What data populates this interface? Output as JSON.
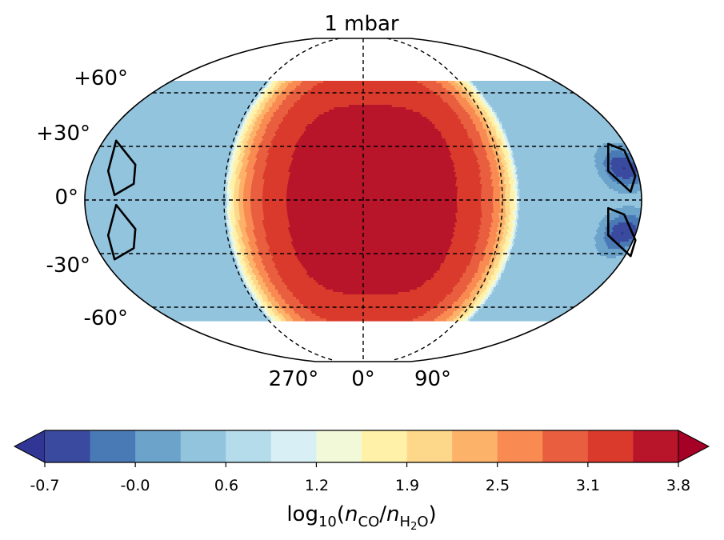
{
  "chart_data": {
    "type": "heatmap",
    "projection": "robinson",
    "title": "1 mbar",
    "lat_ticks": [
      "+60°",
      "+30°",
      "0°",
      "-30°",
      "-60°"
    ],
    "lat_values": [
      60,
      30,
      0,
      -30,
      -60
    ],
    "lon_ticks": [
      "270°",
      "0°",
      "90°"
    ],
    "lon_values": [
      270,
      0,
      90
    ],
    "data_lat_range": [
      -67,
      67
    ],
    "contour_levels": [
      -0.7,
      -0.35,
      -0.0,
      0.3,
      0.6,
      0.9,
      1.2,
      1.55,
      1.9,
      2.2,
      2.5,
      2.8,
      3.1,
      3.45,
      3.8
    ],
    "colorbar": {
      "ticks": [
        "-0.7",
        "-0.0",
        "0.6",
        "1.2",
        "1.9",
        "2.5",
        "3.1",
        "3.8"
      ],
      "label_base": "log",
      "label_sub": "10",
      "label_open": "(",
      "label_n": "n",
      "label_co": "CO",
      "label_slash": "/",
      "label_h": "H",
      "label_2": "2",
      "label_o": "O",
      "label_close": ")",
      "extend": "both",
      "colors": [
        "#313695",
        "#3a4b9f",
        "#4a7ab6",
        "#6ba3ca",
        "#93c4de",
        "#b5dcea",
        "#d8eff5",
        "#f1f9d8",
        "#fff1a8",
        "#fed88a",
        "#fdb26a",
        "#f88a52",
        "#e85e3e",
        "#d93a2c",
        "#b8152a",
        "#a50026"
      ]
    },
    "dayside_center_lon": 0,
    "dayside_max": 3.6,
    "background_level": 0.45,
    "cold_spot_min": -0.5,
    "cold_spot_lats": [
      18,
      -18
    ]
  }
}
